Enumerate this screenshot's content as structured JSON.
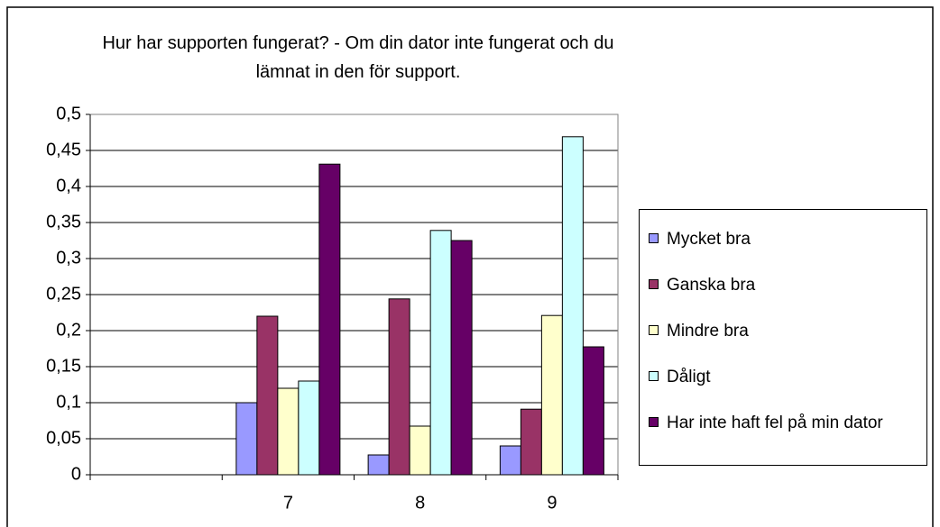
{
  "chart_data": {
    "type": "bar",
    "title": "Hur har supporten fungerat? - Om din dator inte fungerat och du lämnat in den för support.",
    "categories": [
      null,
      "7",
      "8",
      "9"
    ],
    "series": [
      {
        "name": "Mycket bra",
        "color": "#9999ff",
        "values": [
          null,
          0.1,
          0.0275,
          0.04
        ]
      },
      {
        "name": "Ganska bra",
        "color": "#993366",
        "values": [
          null,
          0.22,
          0.244,
          0.091
        ]
      },
      {
        "name": "Mindre bra",
        "color": "#ffffcc",
        "values": [
          null,
          0.12,
          0.0675,
          0.221
        ]
      },
      {
        "name": "Dåligt",
        "color": "#ccffff",
        "values": [
          null,
          0.13,
          0.339,
          0.469
        ]
      },
      {
        "name": "Har inte haft fel på min dator",
        "color": "#660066",
        "values": [
          null,
          0.431,
          0.325,
          0.1775
        ]
      }
    ],
    "ylim": [
      0,
      0.5
    ],
    "yticks": [
      0,
      {
        "value": 0.05,
        "label": "0,05"
      },
      {
        "value": 0.1,
        "label": "0,1"
      },
      {
        "value": 0.15,
        "label": "0,15"
      },
      {
        "value": 0.2,
        "label": "0,2"
      },
      {
        "value": 0.25,
        "label": "0,25"
      },
      {
        "value": 0.3,
        "label": "0,3"
      },
      {
        "value": 0.35,
        "label": "0,35"
      },
      {
        "value": 0.4,
        "label": "0,4"
      },
      {
        "value": 0.45,
        "label": "0,45"
      },
      {
        "value": 0.5,
        "label": "0,5"
      }
    ],
    "grid": true,
    "legend": "right"
  }
}
